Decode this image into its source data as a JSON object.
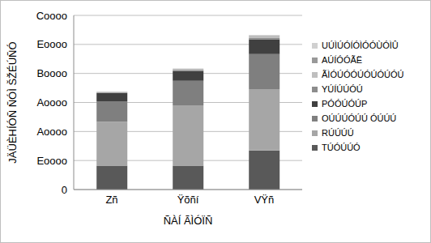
{
  "chart_data": {
    "type": "bar",
    "stacked": true,
    "grid": true,
    "legend": "right",
    "x_label": "ÑÀÍ ÃÌÓÏÑ",
    "y_label": "JÄÜÈHÍÓÑ ÑÓÌ ŠŽÉÚÑÓ",
    "categories": [
      "Zñ",
      "Ÿõñí",
      "VŸñ"
    ],
    "ylim": [
      0,
      60000
    ],
    "yticks": [
      {
        "value": 0,
        "label": "0"
      },
      {
        "value": 10000,
        "label": "Eoooo"
      },
      {
        "value": 20000,
        "label": "Aoooo"
      },
      {
        "value": 30000,
        "label": "Aoooo"
      },
      {
        "value": 40000,
        "label": "Boooo"
      },
      {
        "value": 50000,
        "label": "Eoooo"
      },
      {
        "value": 60000,
        "label": "Coooo"
      }
    ],
    "series": [
      {
        "name": "TÚÓÚÚÓ",
        "color": "#595959",
        "values": [
          8200,
          8200,
          13500
        ]
      },
      {
        "name": "RÚÚÚÚ",
        "color": "#a6a6a6",
        "values": [
          15200,
          20800,
          21100
        ]
      },
      {
        "name": "OÚÚÚÓÚÚ ÓÚÚÚ",
        "color": "#7f7f7f",
        "values": [
          7000,
          8500,
          12100
        ]
      },
      {
        "name": "PÓÓÚÓÚP",
        "color": "#404040",
        "values": [
          2800,
          3400,
          5100
        ]
      },
      {
        "name": "YÚÍÚÚÓÚ",
        "color": "#8c8c8c",
        "values": [
          200,
          300,
          400
        ]
      },
      {
        "name": "ÃÌÓÚÓÓÚÓÚÓÚÓÚ",
        "color": "#bfbfbf",
        "values": [
          200,
          300,
          700
        ]
      },
      {
        "name": "AÚÍÓÓÃË",
        "color": "#999999",
        "values": [
          100,
          100,
          200
        ]
      },
      {
        "name": "UÚÌÚÓÍÓÌÓÓÙÓÌÛ",
        "color": "#d0d0d0",
        "values": [
          100,
          100,
          100
        ]
      }
    ]
  }
}
